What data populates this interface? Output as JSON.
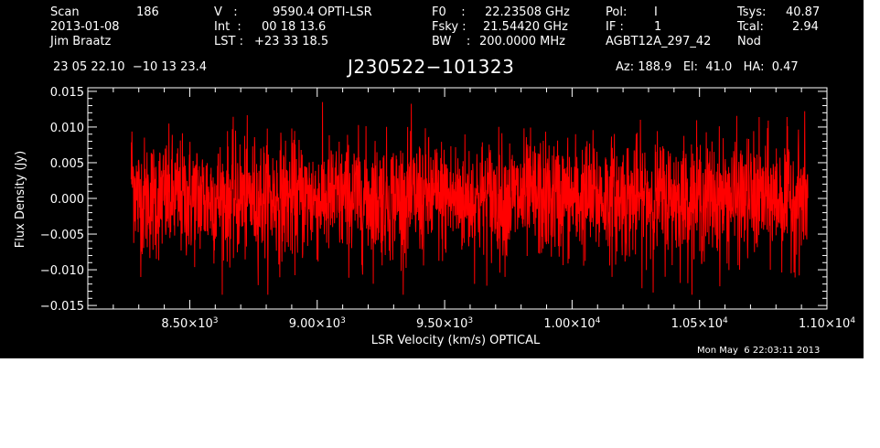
{
  "header": {
    "col1": {
      "scan_label": "Scan",
      "scan_value": "186",
      "date": "2013-01-08",
      "observer": "Jim Braatz"
    },
    "col2": {
      "v_label": "V   :",
      "v_value": "9590.4 OPTI-LSR",
      "int_label": "Int  :",
      "int_value": "00 18 13.6",
      "lst_label": "LST :",
      "lst_value": "+23 33 18.5"
    },
    "col3": {
      "f0_label": "F0    :",
      "f0_value": "22.23508 GHz",
      "fsky_label": "Fsky :",
      "fsky_value": "21.54420 GHz",
      "bw_label": "BW    :",
      "bw_value": "200.0000 MHz"
    },
    "col4": {
      "pol_label": "Pol:",
      "pol_value": "I",
      "if_label": "IF :",
      "if_value": "1",
      "proj": "AGBT12A_297_42"
    },
    "col5": {
      "tsys_label": "Tsys:",
      "tsys_value": "40.87",
      "tcal_label": "Tcal:",
      "tcal_value": "2.94",
      "mode": "Nod"
    },
    "coords": "23 05 22.10  −10 13 23.4",
    "source": "J230522−101323",
    "azelha": "Az: 188.9   El:  41.0   HA:  0.47",
    "timestamp": "Mon May  6 22:03:11 2013"
  },
  "colors": {
    "background": "#000000",
    "axes": "#ffffff",
    "spectrum": "#ff0000"
  },
  "chart_data": {
    "type": "line",
    "xlabel": "LSR Velocity (km/s) OPTICAL",
    "ylabel": "Flux Density (Jy)",
    "xlim": [
      8100,
      11000
    ],
    "ylim": [
      -0.0155,
      0.0155
    ],
    "x_ticks": [
      {
        "value": 8500,
        "mant": "8.50×10",
        "exp": "3"
      },
      {
        "value": 9000,
        "mant": "9.00×10",
        "exp": "3"
      },
      {
        "value": 9500,
        "mant": "9.50×10",
        "exp": "3"
      },
      {
        "value": 10000,
        "mant": "1.00×10",
        "exp": "4"
      },
      {
        "value": 10500,
        "mant": "1.05×10",
        "exp": "4"
      },
      {
        "value": 11000,
        "mant": "1.10×10",
        "exp": "4"
      }
    ],
    "y_ticks": [
      {
        "value": 0.015,
        "label": "0.015"
      },
      {
        "value": 0.01,
        "label": "0.010"
      },
      {
        "value": 0.005,
        "label": "0.005"
      },
      {
        "value": 0.0,
        "label": "0.000"
      },
      {
        "value": -0.005,
        "label": "−0.005"
      },
      {
        "value": -0.01,
        "label": "−0.010"
      },
      {
        "value": -0.015,
        "label": "−0.015"
      }
    ],
    "series": [
      {
        "color": "#ff0000",
        "x_range": [
          8270,
          10925
        ],
        "mean": 0.0,
        "rms": 0.0042,
        "max": 0.0135,
        "min": -0.0135
      }
    ]
  }
}
